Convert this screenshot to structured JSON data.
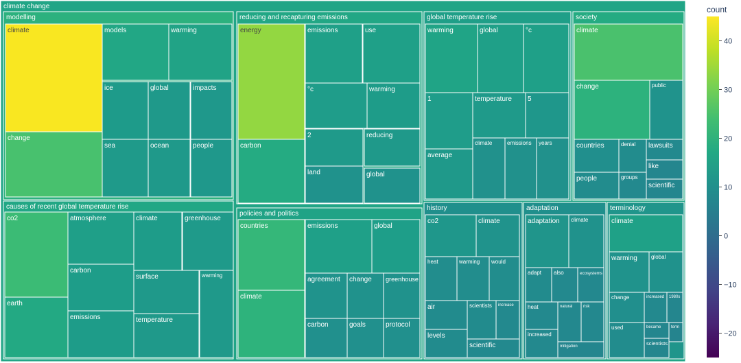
{
  "chart_data": {
    "type": "treemap",
    "root": "climate change",
    "colorbar": {
      "title": "count",
      "min": -25,
      "max": 45,
      "ticks": [
        40,
        30,
        20,
        10,
        0,
        -10,
        -20
      ]
    },
    "root_color": "#21a586",
    "groups": [
      {
        "name": "modelling",
        "color": "#2cb17e",
        "children": [
          {
            "name": "climate",
            "value": 43,
            "color": "#f9e721"
          },
          {
            "name": "change",
            "value": 26,
            "color": "#48c16e"
          },
          {
            "name": "models",
            "value": 16,
            "color": "#22a785"
          },
          {
            "name": "warming",
            "value": 15,
            "color": "#21a386"
          },
          {
            "name": "ice",
            "value": 9,
            "color": "#1e9b8a"
          },
          {
            "name": "global",
            "value": 9,
            "color": "#1f998a"
          },
          {
            "name": "impacts",
            "value": 9,
            "color": "#1f988b"
          },
          {
            "name": "sea",
            "value": 9,
            "color": "#1f9a8a"
          },
          {
            "name": "ocean",
            "value": 9,
            "color": "#1f998a"
          },
          {
            "name": "people",
            "value": 9,
            "color": "#1f988b"
          }
        ]
      },
      {
        "name": "reducing and recapturing emissions",
        "color": "#22a785",
        "children": [
          {
            "name": "energy",
            "value": 33,
            "color": "#93d741"
          },
          {
            "name": "carbon",
            "value": 18,
            "color": "#25ab82"
          },
          {
            "name": "emissions",
            "value": 13,
            "color": "#1fa088"
          },
          {
            "name": "use",
            "value": 13,
            "color": "#1fa088"
          },
          {
            "name": "°c",
            "value": 10,
            "color": "#1f9d8a"
          },
          {
            "name": "warming",
            "value": 10,
            "color": "#1e9c89"
          },
          {
            "name": "2",
            "value": 9,
            "color": "#1f9a8a"
          },
          {
            "name": "reducing",
            "value": 9,
            "color": "#1f998a"
          },
          {
            "name": "land",
            "value": 8,
            "color": "#20928c"
          },
          {
            "name": "global",
            "value": 8,
            "color": "#20928c"
          }
        ]
      },
      {
        "name": "global temperature rise",
        "color": "#1f9f88",
        "children": [
          {
            "name": "warming",
            "value": 15,
            "color": "#20a486"
          },
          {
            "name": "global",
            "value": 13,
            "color": "#1fa088"
          },
          {
            "name": "°c",
            "value": 13,
            "color": "#1fa088"
          },
          {
            "name": "1",
            "value": 10,
            "color": "#1f9d8a"
          },
          {
            "name": "temperature",
            "value": 9,
            "color": "#1f9a8a"
          },
          {
            "name": "5",
            "value": 8,
            "color": "#1f978b"
          },
          {
            "name": "average",
            "value": 9,
            "color": "#1f998a"
          },
          {
            "name": "climate",
            "value": 7,
            "color": "#21918c"
          },
          {
            "name": "emissions",
            "value": 7,
            "color": "#21918c"
          },
          {
            "name": "years",
            "value": 7,
            "color": "#21918c"
          }
        ]
      },
      {
        "name": "society",
        "color": "#25ab82",
        "children": [
          {
            "name": "climate",
            "value": 26,
            "color": "#4ac16d"
          },
          {
            "name": "change",
            "value": 19,
            "color": "#2db27d"
          },
          {
            "name": "public",
            "value": 8,
            "color": "#20938c"
          },
          {
            "name": "countries",
            "value": 6,
            "color": "#218f8d"
          },
          {
            "name": "denial",
            "value": 5,
            "color": "#228c8d"
          },
          {
            "name": "lawsuits",
            "value": 4,
            "color": "#23898e"
          },
          {
            "name": "like",
            "value": 3,
            "color": "#24868e"
          },
          {
            "name": "people",
            "value": 5,
            "color": "#228c8d"
          },
          {
            "name": "groups",
            "value": 4,
            "color": "#23898e"
          },
          {
            "name": "scientific",
            "value": 3,
            "color": "#24868e"
          }
        ]
      },
      {
        "name": "causes of recent global temperature rise",
        "color": "#22a785",
        "children": [
          {
            "name": "co2",
            "value": 24,
            "color": "#3bbb75"
          },
          {
            "name": "earth",
            "value": 17,
            "color": "#23a983"
          },
          {
            "name": "atmosphere",
            "value": 12,
            "color": "#1f9f88"
          },
          {
            "name": "carbon",
            "value": 11,
            "color": "#1e9d89"
          },
          {
            "name": "emissions",
            "value": 11,
            "color": "#1e9c89"
          },
          {
            "name": "climate",
            "value": 11,
            "color": "#1e9c89"
          },
          {
            "name": "greenhouse",
            "value": 10,
            "color": "#1f9a8a"
          },
          {
            "name": "surface",
            "value": 9,
            "color": "#1f998a"
          },
          {
            "name": "temperature",
            "value": 9,
            "color": "#1f998a"
          },
          {
            "name": "warming",
            "value": 9,
            "color": "#1f998a"
          }
        ]
      },
      {
        "name": "policies and politics",
        "color": "#20a386",
        "children": [
          {
            "name": "countries",
            "value": 21,
            "color": "#35b779"
          },
          {
            "name": "climate",
            "value": 19,
            "color": "#2eb37c"
          },
          {
            "name": "emissions",
            "value": 13,
            "color": "#1fa088"
          },
          {
            "name": "global",
            "value": 12,
            "color": "#1e9e89"
          },
          {
            "name": "agreement",
            "value": 8,
            "color": "#20938c"
          },
          {
            "name": "change",
            "value": 8,
            "color": "#20928c"
          },
          {
            "name": "greenhouse",
            "value": 8,
            "color": "#20928c"
          },
          {
            "name": "carbon",
            "value": 7,
            "color": "#21908d"
          },
          {
            "name": "goals",
            "value": 7,
            "color": "#21908d"
          },
          {
            "name": "protocol",
            "value": 7,
            "color": "#21908d"
          }
        ]
      },
      {
        "name": "history",
        "color": "#208f8c",
        "children": [
          {
            "name": "co2",
            "value": 9,
            "color": "#1f978b"
          },
          {
            "name": "climate",
            "value": 8,
            "color": "#20938c"
          },
          {
            "name": "heat",
            "value": 6,
            "color": "#228d8d"
          },
          {
            "name": "warming",
            "value": 6,
            "color": "#228d8d"
          },
          {
            "name": "would",
            "value": 6,
            "color": "#228d8d"
          },
          {
            "name": "air",
            "value": 5,
            "color": "#228b8d"
          },
          {
            "name": "scientists",
            "value": 5,
            "color": "#228b8d"
          },
          {
            "name": "increase",
            "value": 4,
            "color": "#23898e"
          },
          {
            "name": "levels",
            "value": 5,
            "color": "#228b8d"
          },
          {
            "name": "scientific",
            "value": 4,
            "color": "#23898e"
          }
        ]
      },
      {
        "name": "adaptation",
        "color": "#208f8c",
        "children": [
          {
            "name": "adaptation",
            "value": 9,
            "color": "#20958b"
          },
          {
            "name": "climate",
            "value": 8,
            "color": "#20928c"
          },
          {
            "name": "adapt",
            "value": 5,
            "color": "#228b8d"
          },
          {
            "name": "also",
            "value": 4,
            "color": "#23898e"
          },
          {
            "name": "ecosystems",
            "value": 4,
            "color": "#23888e"
          },
          {
            "name": "heat",
            "value": 4,
            "color": "#23898e"
          },
          {
            "name": "natural",
            "value": 4,
            "color": "#23888e"
          },
          {
            "name": "risk",
            "value": 4,
            "color": "#23888e"
          },
          {
            "name": "increased",
            "value": 4,
            "color": "#23898e"
          },
          {
            "name": "mitigation",
            "value": 3,
            "color": "#24868e"
          }
        ]
      },
      {
        "name": "terminology",
        "color": "#20958b",
        "children": [
          {
            "name": "climate",
            "value": 14,
            "color": "#1fa187"
          },
          {
            "name": "warming",
            "value": 8,
            "color": "#20938c"
          },
          {
            "name": "global",
            "value": 8,
            "color": "#20928c"
          },
          {
            "name": "change",
            "value": 6,
            "color": "#218f8d"
          },
          {
            "name": "increased",
            "value": 4,
            "color": "#23898e"
          },
          {
            "name": "1980s",
            "value": 3,
            "color": "#24868e"
          },
          {
            "name": "used",
            "value": 5,
            "color": "#228c8d"
          },
          {
            "name": "became",
            "value": 3,
            "color": "#24868e"
          },
          {
            "name": "term",
            "value": 2,
            "color": "#25848e"
          },
          {
            "name": "scientists",
            "value": 3,
            "color": "#24868e"
          }
        ]
      }
    ]
  }
}
